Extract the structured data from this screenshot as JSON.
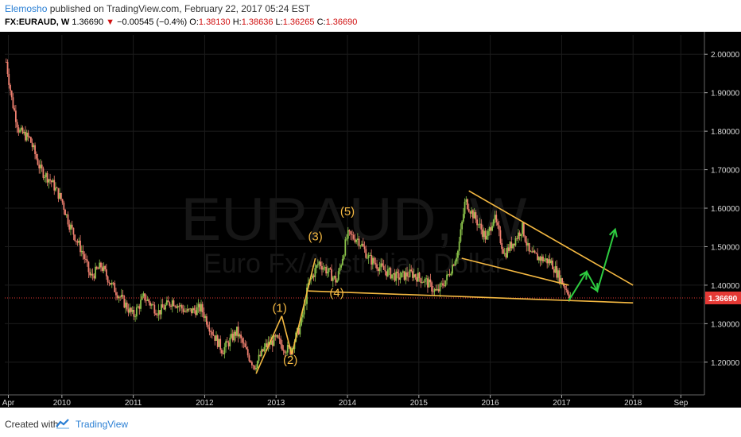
{
  "header": {
    "author": "Elemosho",
    "published": "published on TradingView.com, February 22, 2017 05:24 EST",
    "symbol": "FX:EURAUD, W",
    "last": "1.36690",
    "down_arrow": "▼",
    "change": "−0.00545 (−0.4%)",
    "o_label": "O:",
    "o_value": "1.38130",
    "h_label": "H:",
    "h_value": "1.38636",
    "l_label": "L:",
    "l_value": "1.36265",
    "c_label": "C:",
    "c_value": "1.36690"
  },
  "footer": {
    "created_with": "Created with",
    "brand": "TradingView",
    "logo_icon": "tradingview-logo-icon"
  },
  "colors": {
    "background": "#000000",
    "up": "#8bc34a",
    "down": "#f08070",
    "price_line": "#e53935",
    "pattern_lines": "#f5b942",
    "projection": "#2ecc40",
    "wave_labels": "#f5b942"
  },
  "chart_data": {
    "type": "candlestick",
    "watermark_symbol": "EURAUD, W",
    "watermark_name": "Euro Fx/Australian Dollar",
    "y_ticks": [
      "2.00000",
      "1.90000",
      "1.80000",
      "1.70000",
      "1.60000",
      "1.50000",
      "1.40000",
      "1.30000",
      "1.20000"
    ],
    "y_tick_values": [
      2.0,
      1.9,
      1.8,
      1.7,
      1.6,
      1.5,
      1.4,
      1.3,
      1.2
    ],
    "ylim": [
      1.115,
      2.05
    ],
    "x_ticks": [
      "Apr",
      "2010",
      "2011",
      "2012",
      "2013",
      "2014",
      "2015",
      "2016",
      "2017",
      "2018",
      "Sep"
    ],
    "x_tick_values": [
      2009.25,
      2010.0,
      2011.0,
      2012.0,
      2013.0,
      2014.0,
      2015.0,
      2016.0,
      2017.0,
      2018.0,
      2018.67
    ],
    "xlim": [
      2009.2,
      2019.0
    ],
    "current_price": 1.3669,
    "current_price_label": "1.36690",
    "price_path": [
      [
        2009.22,
        1.98
      ],
      [
        2009.3,
        1.88
      ],
      [
        2009.4,
        1.8
      ],
      [
        2009.55,
        1.78
      ],
      [
        2009.7,
        1.7
      ],
      [
        2009.85,
        1.67
      ],
      [
        2010.0,
        1.62
      ],
      [
        2010.1,
        1.56
      ],
      [
        2010.3,
        1.48
      ],
      [
        2010.4,
        1.42
      ],
      [
        2010.55,
        1.45
      ],
      [
        2010.7,
        1.4
      ],
      [
        2010.85,
        1.36
      ],
      [
        2011.0,
        1.32
      ],
      [
        2011.15,
        1.37
      ],
      [
        2011.35,
        1.33
      ],
      [
        2011.55,
        1.36
      ],
      [
        2011.75,
        1.33
      ],
      [
        2011.95,
        1.34
      ],
      [
        2012.1,
        1.28
      ],
      [
        2012.25,
        1.23
      ],
      [
        2012.45,
        1.28
      ],
      [
        2012.6,
        1.22
      ],
      [
        2012.7,
        1.19
      ],
      [
        2012.85,
        1.24
      ],
      [
        2013.0,
        1.26
      ],
      [
        2013.1,
        1.24
      ],
      [
        2013.2,
        1.23
      ],
      [
        2013.35,
        1.3
      ],
      [
        2013.45,
        1.4
      ],
      [
        2013.6,
        1.46
      ],
      [
        2013.7,
        1.44
      ],
      [
        2013.85,
        1.41
      ],
      [
        2014.0,
        1.53
      ],
      [
        2014.15,
        1.52
      ],
      [
        2014.3,
        1.47
      ],
      [
        2014.5,
        1.44
      ],
      [
        2014.7,
        1.42
      ],
      [
        2014.9,
        1.43
      ],
      [
        2015.1,
        1.41
      ],
      [
        2015.25,
        1.38
      ],
      [
        2015.4,
        1.42
      ],
      [
        2015.55,
        1.49
      ],
      [
        2015.65,
        1.62
      ],
      [
        2015.8,
        1.57
      ],
      [
        2015.95,
        1.52
      ],
      [
        2016.05,
        1.58
      ],
      [
        2016.2,
        1.48
      ],
      [
        2016.35,
        1.52
      ],
      [
        2016.45,
        1.55
      ],
      [
        2016.55,
        1.48
      ],
      [
        2016.7,
        1.47
      ],
      [
        2016.85,
        1.46
      ],
      [
        2017.0,
        1.41
      ],
      [
        2017.13,
        1.37
      ]
    ],
    "wave_labels": [
      {
        "text": "(1)",
        "x": 2013.05,
        "y": 1.331
      },
      {
        "text": "(2)",
        "x": 2013.2,
        "y": 1.195
      },
      {
        "text": "(3)",
        "x": 2013.55,
        "y": 1.516
      },
      {
        "text": "(4)",
        "x": 2013.85,
        "y": 1.37
      },
      {
        "text": "(5)",
        "x": 2014.0,
        "y": 1.581
      }
    ],
    "pattern_lines": [
      {
        "name": "wave-1-up",
        "points": [
          [
            2012.72,
            1.17
          ],
          [
            2013.08,
            1.32
          ]
        ]
      },
      {
        "name": "wave-2-down",
        "points": [
          [
            2013.08,
            1.32
          ],
          [
            2013.22,
            1.22
          ]
        ]
      },
      {
        "name": "wave-3-up",
        "points": [
          [
            2013.22,
            1.22
          ],
          [
            2013.55,
            1.47
          ]
        ]
      },
      {
        "name": "lower-support",
        "points": [
          [
            2013.45,
            1.385
          ],
          [
            2018.0,
            1.354
          ]
        ]
      },
      {
        "name": "triangle-upper",
        "points": [
          [
            2015.7,
            1.645
          ],
          [
            2018.0,
            1.4
          ]
        ]
      },
      {
        "name": "triangle-lower",
        "points": [
          [
            2015.6,
            1.47
          ],
          [
            2017.1,
            1.4
          ]
        ]
      }
    ],
    "projection": [
      [
        2017.1,
        1.36
      ],
      [
        2017.35,
        1.435
      ],
      [
        2017.5,
        1.385
      ],
      [
        2017.75,
        1.545
      ]
    ]
  }
}
